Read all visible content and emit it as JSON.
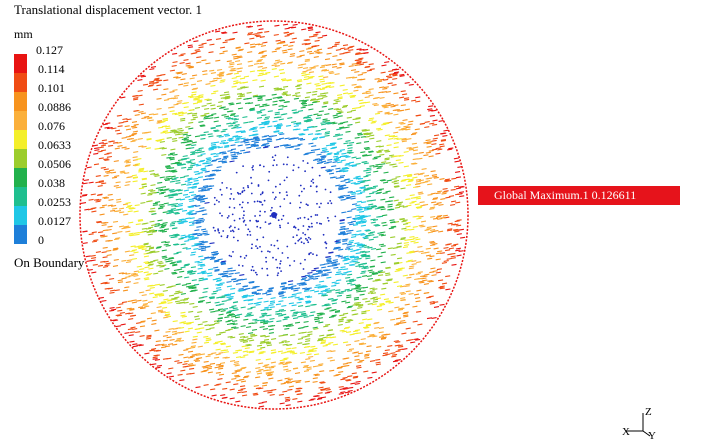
{
  "title": "Translational displacement vector. 1",
  "unit": "mm",
  "legend": {
    "labels": [
      "0.127",
      "0.114",
      "0.101",
      "0.0886",
      "0.076",
      "0.0633",
      "0.0506",
      "0.038",
      "0.0253",
      "0.0127",
      "0"
    ],
    "colors": [
      "#e81412",
      "#f04c14",
      "#f7931e",
      "#fbb03b",
      "#f4ef2a",
      "#9ccd2c",
      "#22b14c",
      "#1fbf8f",
      "#20c7e6",
      "#1e7fd9",
      "#1f2ebf"
    ]
  },
  "boundary_label": "On Boundary",
  "callout": {
    "text": "Global Maximum.1 0.126611",
    "color": "#e6131b"
  },
  "axes": {
    "z": "Z",
    "x": "X",
    "y": "Y"
  }
}
